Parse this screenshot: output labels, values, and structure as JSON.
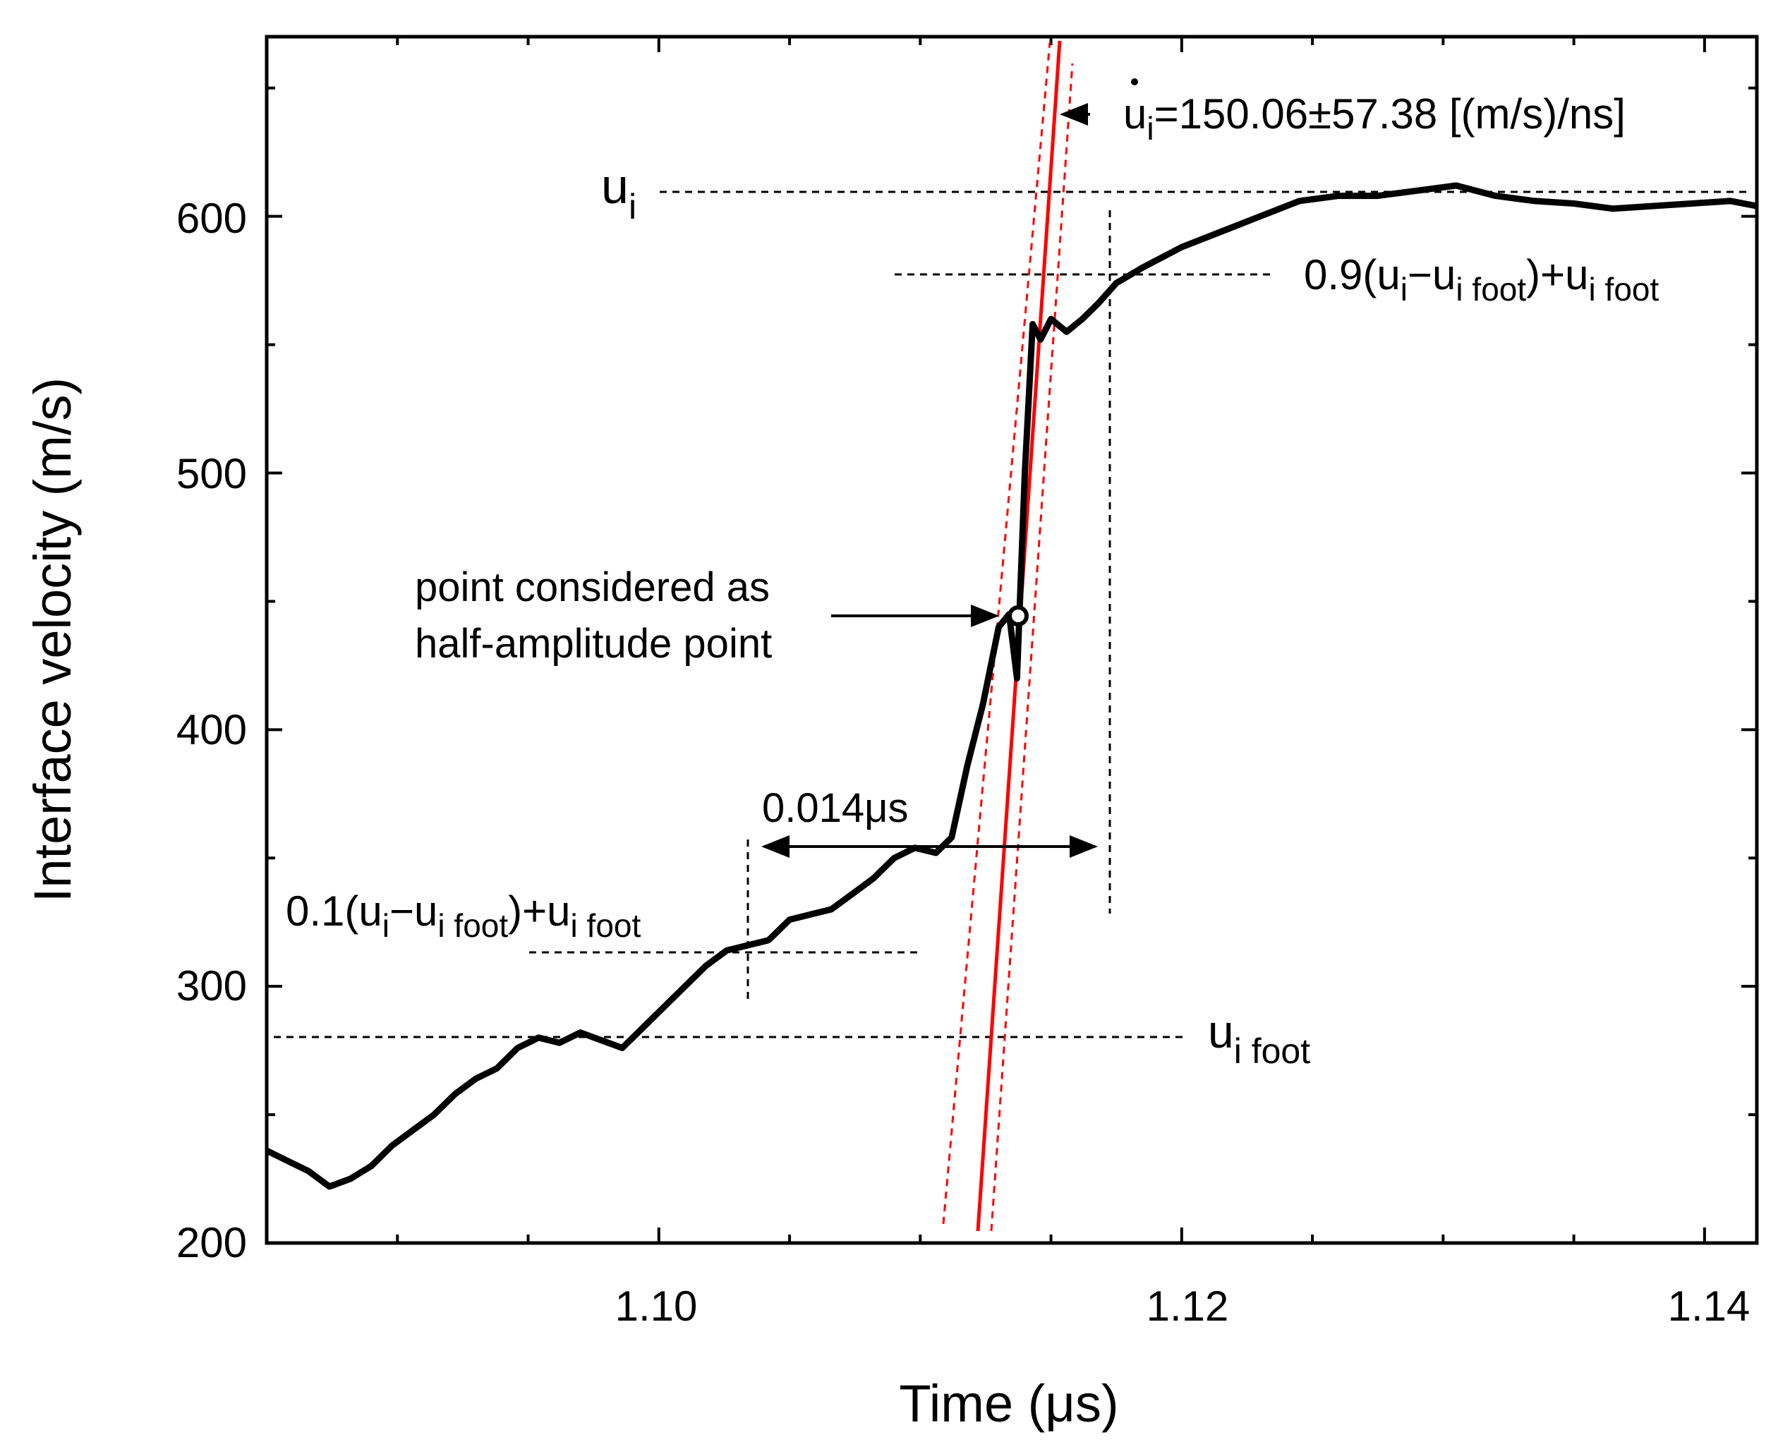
{
  "chart_data": {
    "type": "line",
    "xlabel": "Time (μs)",
    "ylabel": "Interface velocity (m/s)",
    "xlim": [
      1.085,
      1.142
    ],
    "ylim": [
      200,
      670
    ],
    "x_ticks": [
      "1.10",
      "1.12",
      "1.14"
    ],
    "y_ticks": [
      "200",
      "300",
      "400",
      "500",
      "600"
    ],
    "grid": false,
    "legend": "none",
    "colors": {
      "trace": "#000000",
      "fit": "#ff0000",
      "guides": "#000000"
    },
    "series": [
      {
        "x": [
          1.085,
          1.0858,
          1.0866,
          1.0874,
          1.0882,
          1.089,
          1.0898,
          1.0906,
          1.0914,
          1.0922,
          1.093,
          1.0938,
          1.0946,
          1.0954,
          1.0962,
          1.097,
          1.0978,
          1.0986,
          1.0994,
          1.1002,
          1.101,
          1.1018,
          1.1026,
          1.1034,
          1.1042,
          1.105,
          1.1058,
          1.1066,
          1.1074,
          1.1082,
          1.109,
          1.1098,
          1.1106,
          1.1112,
          1.1118,
          1.1124,
          1.113,
          1.1134,
          1.1137,
          1.114,
          1.1143,
          1.1146,
          1.115,
          1.1156,
          1.1162,
          1.1168,
          1.1175,
          1.1185,
          1.12,
          1.1215,
          1.123,
          1.1245,
          1.126,
          1.1275,
          1.129,
          1.1305,
          1.132,
          1.1335,
          1.135,
          1.1365,
          1.138,
          1.1395,
          1.141,
          1.142
        ],
        "y": [
          236,
          232,
          228,
          222,
          225,
          230,
          238,
          244,
          250,
          258,
          264,
          268,
          276,
          280,
          278,
          282,
          279,
          276,
          284,
          292,
          300,
          308,
          314,
          316,
          318,
          326,
          328,
          330,
          336,
          342,
          350,
          354,
          352,
          358,
          386,
          410,
          440,
          445,
          420,
          500,
          558,
          552,
          560,
          555,
          560,
          566,
          574,
          580,
          588,
          594,
          600,
          606,
          608,
          608,
          610,
          612,
          608,
          606,
          605,
          603,
          604,
          605,
          606,
          604
        ]
      }
    ],
    "reference_lines": [
      {
        "label": "u",
        "subscript": "i",
        "y": 610
      },
      {
        "label": "0.9(u",
        "y": 576
      },
      {
        "label": "0.1(u",
        "y": 313
      },
      {
        "label": "u",
        "subscript": "i foot",
        "y": 280
      }
    ],
    "fit_line": {
      "x1": 1.1127,
      "y1": 205,
      "x2": 1.1154,
      "y2": 670
    },
    "half_amplitude_point": {
      "x": 1.1136,
      "y": 445
    },
    "rise_time_span": {
      "x1": 1.1035,
      "x2": 1.117,
      "y": 352
    }
  },
  "annotations": {
    "slope_text_u": "u",
    "slope_text_sub": "i",
    "slope_text_rest": "=150.06±57.38 [(m/s)/ns]",
    "ui_label": "u",
    "ui_sub": "i",
    "upper_level_a": "0.9(u",
    "upper_level_sub1": "i",
    "upper_level_b": "−u",
    "upper_level_sub2": "i foot",
    "upper_level_c": ")+u",
    "upper_level_sub3": "i foot",
    "lower_level_a": "0.1(u",
    "lower_level_sub1": "i",
    "lower_level_b": "−u",
    "lower_level_sub2": "i foot",
    "lower_level_c": ")+u",
    "lower_level_sub3": "i foot",
    "foot_label": "u",
    "foot_sub": "i foot",
    "rise_time": "0.014μs",
    "half_point_line1": "point considered as",
    "half_point_line2": "half-amplitude point"
  }
}
